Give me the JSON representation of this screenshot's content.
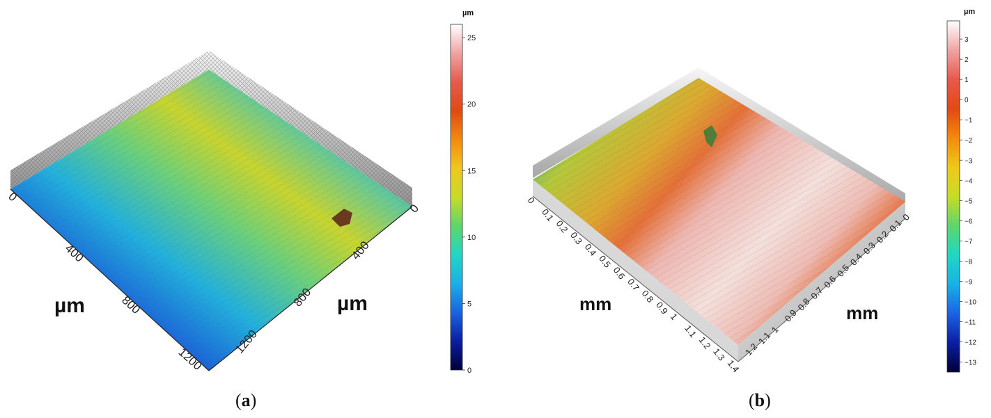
{
  "panels": [
    {
      "id": "a",
      "caption_open": "(",
      "caption_letter": "a",
      "caption_close": ")",
      "axis_label_left": "µm",
      "axis_label_right": "µm",
      "left_axis_ticks": [
        "0",
        "400",
        "800",
        "1200"
      ],
      "right_axis_ticks": [
        "0",
        "400",
        "800",
        "1200"
      ],
      "colorbar": {
        "unit": "µm",
        "min": 0,
        "max": 26,
        "ticks": [
          "0",
          "5",
          "10",
          "15",
          "20",
          "25"
        ],
        "tick_values": [
          0,
          5,
          10,
          15,
          20,
          25
        ],
        "colormap": "jet",
        "colors": [
          "#00003a",
          "#0a1ea0",
          "#1a64e0",
          "#1ab0e6",
          "#22d6c4",
          "#5ed66a",
          "#c6dc28",
          "#f0c818",
          "#f28a10",
          "#e04a12",
          "#e65a4a",
          "#f0a4a4",
          "#ffffff"
        ]
      },
      "surface_colors": [
        "#0c1a86",
        "#1848d6",
        "#22a8e0",
        "#3cd0b4",
        "#9ed24a",
        "#d6d230"
      ]
    },
    {
      "id": "b",
      "caption_open": "(",
      "caption_letter": "b",
      "caption_close": ")",
      "axis_label_left": "mm",
      "axis_label_right": "mm",
      "left_axis_ticks": [
        "0",
        "0.1",
        "0.2",
        "0.3",
        "0.4",
        "0.5",
        "0.6",
        "0.7",
        "0.8",
        "0.9",
        "1",
        "1.1",
        "1.2",
        "1.3",
        "1.4"
      ],
      "right_axis_ticks": [
        "0",
        "0.1",
        "0.2",
        "0.3",
        "0.4",
        "0.5",
        "0.6",
        "0.7",
        "0.8",
        "0.9",
        "1",
        "1.1",
        "1.2"
      ],
      "colorbar": {
        "unit": "µm",
        "min": -13.5,
        "max": 3.9,
        "ticks": [
          "3",
          "2",
          "1",
          "0",
          "−1",
          "−2",
          "−3",
          "−4",
          "−5",
          "−6",
          "−7",
          "−8",
          "−9",
          "−10",
          "−11",
          "−12",
          "−13"
        ],
        "tick_values": [
          3,
          2,
          1,
          0,
          -1,
          -2,
          -3,
          -4,
          -5,
          -6,
          -7,
          -8,
          -9,
          -10,
          -11,
          -12,
          -13
        ],
        "colormap": "jet",
        "colors": [
          "#00003a",
          "#0a1ea0",
          "#1a64e0",
          "#1ab0e6",
          "#22d6c4",
          "#5ed66a",
          "#c6dc28",
          "#f0c818",
          "#f28a10",
          "#e04a12",
          "#e65a4a",
          "#f0a4a4",
          "#ffffff"
        ]
      },
      "surface_colors": [
        "#3ea8a0",
        "#b8c830",
        "#d89028",
        "#e05a3a",
        "#f0c8c8",
        "#e8dcdc"
      ]
    }
  ]
}
